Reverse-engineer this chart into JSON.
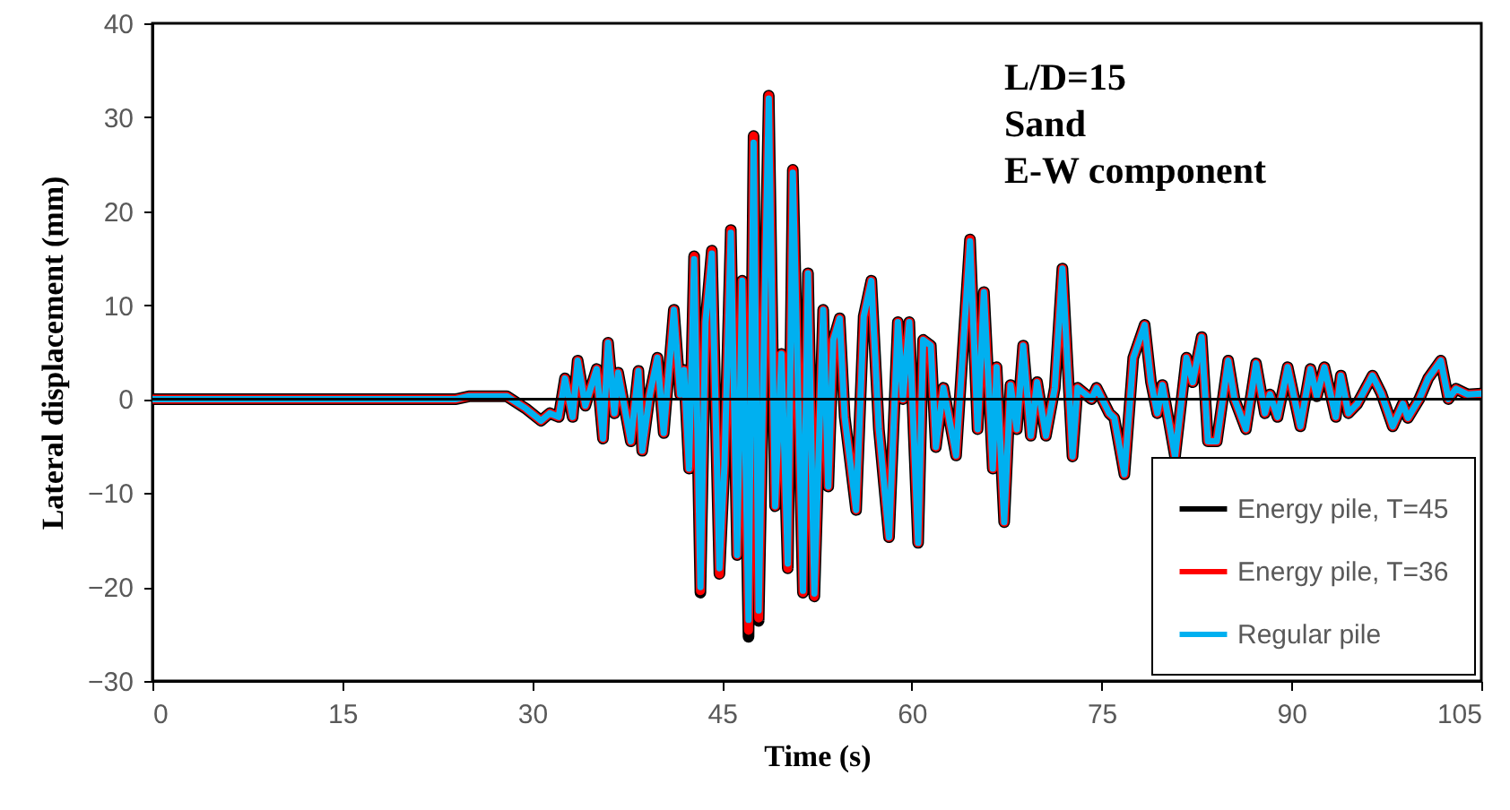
{
  "chart_data": {
    "type": "line",
    "xlabel": "Time (s)",
    "ylabel": "Lateral displacement (mm)",
    "annotations": [
      "L/D=15",
      "Sand",
      "E-W component"
    ],
    "xlim": [
      0,
      105
    ],
    "xticks": [
      0,
      15,
      30,
      45,
      60,
      75,
      90,
      105
    ],
    "ylim": [
      -30,
      40
    ],
    "yticks": [
      -30,
      -20,
      -10,
      0,
      10,
      20,
      30,
      40
    ],
    "grid": false,
    "legend": "bottom right",
    "ref_lines": [
      {
        "axis": "y",
        "value": 0,
        "color": "#000000"
      }
    ],
    "x": [
      0,
      24,
      25,
      28,
      29.5,
      30.7,
      31.4,
      32.1,
      32.6,
      33.2,
      33.6,
      34.2,
      35.1,
      35.6,
      36.0,
      36.5,
      36.8,
      37.8,
      38.4,
      38.7,
      39.3,
      39.9,
      40.4,
      41.2,
      41.7,
      42.0,
      42.4,
      42.8,
      43.3,
      43.7,
      44.2,
      44.8,
      45.2,
      45.7,
      46.2,
      46.6,
      47.1,
      47.5,
      47.9,
      48.7,
      49.2,
      49.7,
      50.2,
      50.6,
      51.4,
      51.8,
      52.3,
      53.0,
      53.4,
      53.8,
      54.3,
      54.7,
      55.6,
      56.2,
      56.8,
      57.4,
      58.2,
      58.9,
      59.3,
      59.8,
      60.5,
      60.9,
      61.5,
      61.9,
      62.5,
      63.5,
      64.6,
      65.2,
      65.7,
      66.4,
      66.7,
      67.3,
      67.8,
      68.3,
      68.8,
      69.4,
      69.9,
      70.6,
      71.3,
      71.9,
      72.7,
      73.1,
      74.2,
      74.6,
      75.6,
      76.0,
      76.8,
      77.5,
      78.4,
      78.9,
      79.4,
      79.8,
      80.8,
      81.7,
      82.2,
      82.9,
      83.4,
      84.1,
      85.0,
      85.5,
      86.4,
      87.2,
      87.9,
      88.3,
      88.9,
      89.7,
      90.7,
      91.5,
      92.0,
      92.6,
      93.5,
      93.9,
      94.5,
      95.2,
      96.4,
      97.1,
      98.0,
      98.8,
      99.2,
      100.1,
      100.8,
      101.8,
      102.4,
      103.0,
      103.9,
      105
    ],
    "series": [
      {
        "name": "Energy pile, T=45",
        "color": "#000000",
        "values": [
          0,
          0,
          0.3,
          0.3,
          -1,
          -2.3,
          -1.5,
          -1.9,
          2.2,
          -1.9,
          4.1,
          -0.7,
          3.2,
          -4.2,
          6.0,
          -1.5,
          2.8,
          -4.5,
          3.0,
          -5.5,
          0.5,
          4.4,
          -3.6,
          9.5,
          0.5,
          3.1,
          -7.4,
          15.2,
          -20.6,
          8.2,
          15.8,
          -18.6,
          -7,
          18,
          -16.6,
          12.6,
          -25.3,
          28,
          -23.6,
          32.3,
          -11.4,
          4.8,
          -18,
          24.4,
          -20.6,
          13.4,
          -21,
          9.5,
          -9.3,
          6.3,
          8.6,
          -1.9,
          -11.8,
          8.8,
          12.6,
          -3.2,
          -14.7,
          8.2,
          0,
          8.2,
          -15.3,
          6.3,
          5.7,
          -5.1,
          1.2,
          -6,
          17,
          -3.2,
          11.4,
          -7.4,
          3.4,
          -13.1,
          1.5,
          -3.2,
          5.7,
          -3.9,
          1.8,
          -3.9,
          1.2,
          13.9,
          -6.1,
          1.2,
          0,
          1.2,
          -1.5,
          -2,
          -8,
          4.4,
          7.9,
          1.8,
          -1.5,
          1.5,
          -6.1,
          4.4,
          1.8,
          6.6,
          -4.5,
          -4.5,
          4.1,
          0,
          -3.2,
          3.8,
          -1.5,
          0.5,
          -1.9,
          3.4,
          -2.9,
          3.2,
          0.3,
          3.4,
          -1.9,
          2.5,
          -1.5,
          -0.5,
          2.5,
          0.6,
          -2.9,
          -0.5,
          -2.0,
          0,
          2.2,
          4.1,
          0,
          1.1,
          0.5,
          0.6
        ]
      },
      {
        "name": "Energy pile, T=36",
        "color": "#ff0000",
        "values": [
          0,
          0,
          0.3,
          0.3,
          -1,
          -2.3,
          -1.5,
          -1.9,
          2.2,
          -1.9,
          4.1,
          -0.7,
          3.2,
          -4.2,
          6.0,
          -1.5,
          2.8,
          -4.5,
          3.0,
          -5.5,
          0.5,
          4.4,
          -3.6,
          9.5,
          0.5,
          3.1,
          -7.4,
          15.2,
          -20.4,
          8.2,
          15.8,
          -18.6,
          -7,
          18,
          -16.6,
          12.6,
          -24.6,
          28,
          -23.3,
          32.3,
          -11.4,
          4.8,
          -18,
          24.4,
          -20.6,
          13.4,
          -21,
          9.5,
          -9.3,
          6.3,
          8.6,
          -1.9,
          -11.8,
          8.8,
          12.6,
          -3.2,
          -14.7,
          8.2,
          0,
          8.2,
          -15.3,
          6.3,
          5.7,
          -5.1,
          1.2,
          -6,
          17,
          -3.2,
          11.4,
          -7.4,
          3.4,
          -13.1,
          1.5,
          -3.2,
          5.7,
          -3.9,
          1.8,
          -3.9,
          1.2,
          13.9,
          -6.1,
          1.2,
          0,
          1.2,
          -1.5,
          -2,
          -8,
          4.4,
          7.9,
          1.8,
          -1.5,
          1.5,
          -6.1,
          4.4,
          1.8,
          6.6,
          -4.5,
          -4.5,
          4.1,
          0,
          -3.2,
          3.8,
          -1.5,
          0.5,
          -1.9,
          3.4,
          -2.9,
          3.2,
          0.3,
          3.4,
          -1.9,
          2.5,
          -1.5,
          -0.5,
          2.5,
          0.6,
          -2.9,
          -0.5,
          -2.0,
          0,
          2.2,
          4.1,
          0,
          1.1,
          0.5,
          0.6
        ]
      },
      {
        "name": "Regular pile",
        "color": "#00b0f0",
        "values": [
          0,
          0,
          0.3,
          0.3,
          -1,
          -2.3,
          -1.5,
          -1.9,
          2.2,
          -1.9,
          4.1,
          -0.7,
          3.2,
          -4.2,
          6.0,
          -1.5,
          2.8,
          -4.5,
          3.0,
          -5.5,
          0.5,
          4.4,
          -3.6,
          9.5,
          0.5,
          3.1,
          -7.4,
          14.9,
          -20,
          8.2,
          15.5,
          -18,
          -7,
          17.7,
          -16.6,
          12.6,
          -23.5,
          27.3,
          -22.5,
          32,
          -11.4,
          4.8,
          -17.5,
          24.1,
          -20.4,
          13.4,
          -20.7,
          9.5,
          -9.3,
          6.3,
          8.6,
          -1.9,
          -11.8,
          8.8,
          12.6,
          -3.2,
          -14.7,
          8.2,
          0,
          8.2,
          -15.3,
          6.3,
          5.7,
          -5.1,
          1.2,
          -6,
          16.8,
          -3.2,
          11.4,
          -7.4,
          3.4,
          -13.1,
          1.5,
          -3.2,
          5.7,
          -3.9,
          1.8,
          -3.9,
          1.2,
          13.9,
          -6.1,
          1.2,
          0,
          1.2,
          -1.5,
          -2,
          -8,
          4.4,
          7.9,
          1.8,
          -1.5,
          1.5,
          -6.1,
          4.4,
          1.8,
          6.6,
          -4.5,
          -4.5,
          4.1,
          0,
          -3.2,
          3.8,
          -1.5,
          0.5,
          -1.9,
          3.4,
          -2.9,
          3.2,
          0.3,
          3.4,
          -1.9,
          2.5,
          -1.5,
          -0.5,
          2.5,
          0.6,
          -2.9,
          -0.5,
          -2.0,
          0,
          2.2,
          4.1,
          0,
          1.1,
          0.5,
          0.6
        ]
      }
    ]
  }
}
